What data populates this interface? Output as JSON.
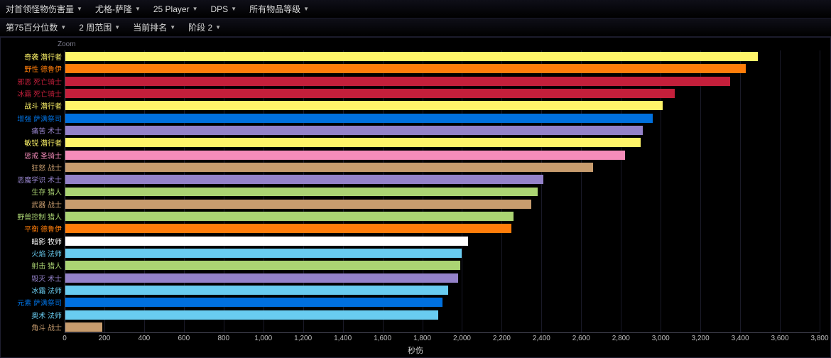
{
  "toolbar1": {
    "metric": {
      "label": "对首领怪物伤害量"
    },
    "boss": {
      "label": "尤格-萨隆"
    },
    "size": {
      "label": "25 Player"
    },
    "role": {
      "label": "DPS"
    },
    "ilvl": {
      "label": "所有物品等级"
    }
  },
  "toolbar2": {
    "percentile": {
      "label": "第75百分位数"
    },
    "window": {
      "label": "2 周范围"
    },
    "ranking": {
      "label": "当前排名"
    },
    "phase": {
      "label": "阶段 2"
    }
  },
  "chart": {
    "zoom_label": "Zoom",
    "type": "bar-horizontal",
    "x_title": "秒伤",
    "x_min": 0,
    "x_max": 3800,
    "x_tick_step": 200,
    "grid_color": "#1a1a28",
    "axis_color": "#4a4a5a",
    "background_color": "#000000",
    "bar_gap_ratio": 0.25,
    "label_fontsize": 10,
    "tick_fontsize": 10,
    "class_colors": {
      "rogue": "#fff569",
      "druid": "#ff7d0a",
      "dk": "#c41f3b",
      "shaman": "#0070de",
      "warlock": "#9482c9",
      "paladin": "#f58cba",
      "warrior": "#c79c6e",
      "hunter": "#abd473",
      "priest": "#ffffff",
      "mage": "#69ccf0"
    },
    "series": [
      {
        "label": "奇袭 潜行者",
        "value": 3490,
        "color": "#fff569"
      },
      {
        "label": "野性 德鲁伊",
        "value": 3430,
        "color": "#ff7d0a"
      },
      {
        "label": "邪恶 死亡骑士",
        "value": 3350,
        "color": "#c41f3b"
      },
      {
        "label": "冰霜 死亡骑士",
        "value": 3070,
        "color": "#c41f3b"
      },
      {
        "label": "战斗 潜行者",
        "value": 3010,
        "color": "#fff569"
      },
      {
        "label": "增强 萨满祭司",
        "value": 2960,
        "color": "#0070de"
      },
      {
        "label": "痛苦 术士",
        "value": 2910,
        "color": "#9482c9"
      },
      {
        "label": "敏锐 潜行者",
        "value": 2900,
        "color": "#fff569"
      },
      {
        "label": "惩戒 圣骑士",
        "value": 2820,
        "color": "#f58cba"
      },
      {
        "label": "狂怒 战士",
        "value": 2660,
        "color": "#c79c6e"
      },
      {
        "label": "恶魔学识 术士",
        "value": 2410,
        "color": "#9482c9"
      },
      {
        "label": "生存 猎人",
        "value": 2380,
        "color": "#abd473"
      },
      {
        "label": "武器 战士",
        "value": 2350,
        "color": "#c79c6e"
      },
      {
        "label": "野兽控制 猎人",
        "value": 2260,
        "color": "#abd473"
      },
      {
        "label": "平衡 德鲁伊",
        "value": 2250,
        "color": "#ff7d0a"
      },
      {
        "label": "暗影 牧师",
        "value": 2030,
        "color": "#ffffff"
      },
      {
        "label": "火焰 法师",
        "value": 2000,
        "color": "#69ccf0"
      },
      {
        "label": "射击 猎人",
        "value": 1990,
        "color": "#abd473"
      },
      {
        "label": "毁灭 术士",
        "value": 1980,
        "color": "#9482c9"
      },
      {
        "label": "冰霜 法师",
        "value": 1930,
        "color": "#69ccf0"
      },
      {
        "label": "元素 萨满祭司",
        "value": 1900,
        "color": "#0070de"
      },
      {
        "label": "奥术 法师",
        "value": 1880,
        "color": "#69ccf0"
      },
      {
        "label": "角斗 战士",
        "value": 190,
        "color": "#c79c6e"
      }
    ]
  }
}
